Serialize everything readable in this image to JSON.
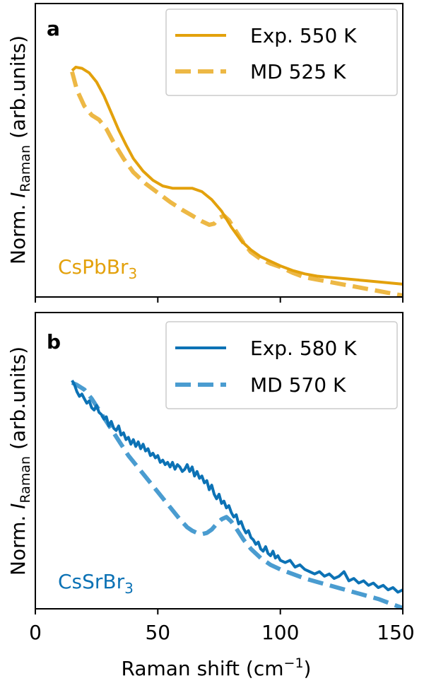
{
  "chart_data": [
    {
      "type": "line",
      "panel_label": "a",
      "material": {
        "base": "CsPbBr",
        "sub": "3"
      },
      "xlabel": {
        "base": "Raman shift (cm",
        "sup": "−1",
        "tail": ")"
      },
      "ylabel": {
        "prefix": "Norm. ",
        "italic": "I",
        "sub": "Raman",
        "suffix": " (arb.units)"
      },
      "xlim": [
        0,
        150
      ],
      "ylim": [
        0,
        1
      ],
      "xticks": [
        0,
        50,
        100,
        150
      ],
      "xtick_labels_shown": false,
      "legend": {
        "position": "top-right"
      },
      "series": [
        {
          "name": "Exp. 550 K",
          "style": "solid",
          "color": "#E3A10C",
          "x": [
            15,
            16.5,
            19,
            22,
            25,
            28,
            31,
            34,
            37,
            40,
            44,
            48,
            52,
            56,
            60,
            64,
            68,
            72,
            76,
            80,
            84,
            88,
            92,
            96,
            100,
            105,
            110,
            115,
            120,
            125,
            130,
            135,
            140,
            145,
            150
          ],
          "y": [
            0.985,
            1.0,
            0.995,
            0.975,
            0.935,
            0.875,
            0.8,
            0.725,
            0.66,
            0.6,
            0.545,
            0.505,
            0.48,
            0.47,
            0.47,
            0.47,
            0.455,
            0.42,
            0.37,
            0.3,
            0.24,
            0.2,
            0.17,
            0.15,
            0.13,
            0.11,
            0.095,
            0.085,
            0.08,
            0.075,
            0.07,
            0.065,
            0.06,
            0.055,
            0.05
          ]
        },
        {
          "name": "MD 525 K",
          "style": "dashed",
          "color": "#EDB845",
          "x": [
            15,
            17,
            20,
            23,
            26,
            29,
            32,
            36,
            40,
            45,
            50,
            55,
            60,
            64,
            68,
            71,
            73,
            75,
            77,
            79,
            82,
            85,
            88,
            92,
            96,
            100,
            105,
            110,
            115,
            120,
            125,
            130,
            135,
            140,
            145,
            150
          ],
          "y": [
            0.98,
            0.9,
            0.83,
            0.79,
            0.77,
            0.73,
            0.67,
            0.6,
            0.54,
            0.49,
            0.45,
            0.41,
            0.375,
            0.35,
            0.325,
            0.31,
            0.315,
            0.34,
            0.35,
            0.33,
            0.28,
            0.23,
            0.19,
            0.16,
            0.14,
            0.125,
            0.1,
            0.08,
            0.07,
            0.06,
            0.05,
            0.04,
            0.03,
            0.02,
            0.01,
            0.0
          ]
        }
      ]
    },
    {
      "type": "line",
      "panel_label": "b",
      "material": {
        "base": "CsSrBr",
        "sub": "3"
      },
      "xlabel": {
        "base": "Raman shift (cm",
        "sup": "−1",
        "tail": ")"
      },
      "ylabel": {
        "prefix": "Norm. ",
        "italic": "I",
        "sub": "Raman",
        "suffix": " (arb.units)"
      },
      "xlim": [
        0,
        150
      ],
      "ylim": [
        0,
        1
      ],
      "xticks": [
        0,
        50,
        100,
        150
      ],
      "xtick_labels": [
        "0",
        "50",
        "100",
        "150"
      ],
      "legend": {
        "position": "top-right"
      },
      "series": [
        {
          "name": "Exp. 580 K",
          "style": "solid",
          "color": "#0C72B5",
          "x": [
            15,
            16,
            17,
            18,
            19,
            20,
            21,
            22,
            23,
            24,
            25,
            26,
            27,
            28,
            29,
            30,
            31,
            32,
            33,
            34,
            35,
            36,
            37,
            38,
            39,
            40,
            41,
            42,
            43,
            44,
            45,
            46,
            47,
            48,
            49,
            50,
            51,
            52,
            53,
            54,
            55,
            56,
            57,
            58,
            59,
            60,
            61,
            62,
            63,
            64,
            65,
            66,
            67,
            68,
            69,
            70,
            71,
            72,
            73,
            74,
            75,
            76,
            77,
            78,
            79,
            80,
            81,
            82,
            83,
            84,
            85,
            86,
            87,
            88,
            89,
            90,
            91,
            92,
            93,
            94,
            95,
            96,
            97,
            98,
            99,
            100,
            102,
            104,
            106,
            108,
            110,
            112,
            114,
            116,
            118,
            120,
            122,
            124,
            126,
            128,
            130,
            132,
            134,
            136,
            138,
            140,
            142,
            144,
            146,
            148,
            150
          ],
          "y": [
            1.0,
            0.98,
            0.95,
            0.93,
            0.94,
            0.92,
            0.9,
            0.91,
            0.88,
            0.87,
            0.89,
            0.86,
            0.85,
            0.83,
            0.84,
            0.8,
            0.82,
            0.79,
            0.78,
            0.8,
            0.76,
            0.77,
            0.74,
            0.75,
            0.72,
            0.74,
            0.71,
            0.73,
            0.7,
            0.72,
            0.69,
            0.7,
            0.67,
            0.68,
            0.66,
            0.67,
            0.64,
            0.65,
            0.63,
            0.64,
            0.62,
            0.64,
            0.61,
            0.63,
            0.62,
            0.6,
            0.61,
            0.63,
            0.6,
            0.62,
            0.58,
            0.6,
            0.57,
            0.58,
            0.55,
            0.56,
            0.52,
            0.54,
            0.5,
            0.48,
            0.5,
            0.46,
            0.47,
            0.44,
            0.45,
            0.42,
            0.4,
            0.41,
            0.37,
            0.38,
            0.35,
            0.33,
            0.34,
            0.31,
            0.3,
            0.28,
            0.29,
            0.26,
            0.25,
            0.27,
            0.24,
            0.23,
            0.25,
            0.22,
            0.23,
            0.21,
            0.2,
            0.21,
            0.18,
            0.19,
            0.17,
            0.16,
            0.15,
            0.16,
            0.14,
            0.15,
            0.13,
            0.14,
            0.16,
            0.12,
            0.13,
            0.11,
            0.12,
            0.1,
            0.11,
            0.09,
            0.1,
            0.08,
            0.09,
            0.07,
            0.08
          ]
        },
        {
          "name": "MD 570 K",
          "style": "dashed",
          "color": "#4A9CD0",
          "x": [
            15,
            17,
            20,
            23,
            26,
            29,
            32,
            35,
            38,
            41,
            44,
            47,
            50,
            53,
            56,
            59,
            62,
            64,
            66,
            68,
            70,
            72,
            74,
            76,
            78,
            80,
            82,
            85,
            88,
            92,
            96,
            100,
            105,
            110,
            115,
            120,
            125,
            130,
            135,
            140,
            145,
            150
          ],
          "y": [
            0.99,
            0.98,
            0.96,
            0.92,
            0.87,
            0.82,
            0.77,
            0.72,
            0.67,
            0.63,
            0.59,
            0.55,
            0.51,
            0.47,
            0.43,
            0.39,
            0.355,
            0.34,
            0.33,
            0.325,
            0.33,
            0.345,
            0.37,
            0.39,
            0.4,
            0.38,
            0.35,
            0.3,
            0.26,
            0.22,
            0.19,
            0.17,
            0.15,
            0.13,
            0.115,
            0.1,
            0.085,
            0.07,
            0.055,
            0.04,
            0.02,
            0.0
          ]
        }
      ]
    }
  ]
}
